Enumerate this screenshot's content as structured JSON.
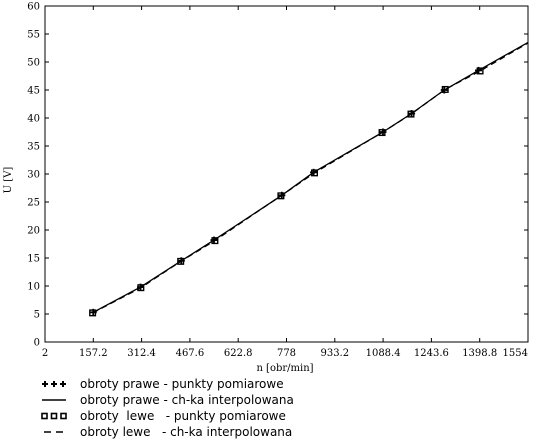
{
  "chart_data": {
    "type": "line",
    "xlabel": "n [obr/min]",
    "ylabel": "U [V]",
    "xlim": [
      2,
      1554
    ],
    "ylim": [
      0,
      60
    ],
    "x_ticks": [
      "2",
      "157.2",
      "312.4",
      "467.6",
      "622.8",
      "778",
      "933.2",
      "1088.4",
      "1243.6",
      "1398.8",
      "1554"
    ],
    "y_ticks": [
      "0",
      "5",
      "10",
      "15",
      "20",
      "25",
      "30",
      "35",
      "40",
      "45",
      "50",
      "55",
      "60"
    ],
    "grid": false,
    "legend_position": "bottom",
    "series": [
      {
        "name": "obroty prawe - punkty pomiarowe",
        "marker": "plus",
        "x": [
          157,
          309,
          440,
          545,
          763,
          865,
          1088,
          1180,
          1285,
          1395
        ],
        "y": [
          5.3,
          9.8,
          14.5,
          18.2,
          26.2,
          30.3,
          37.5,
          40.8,
          45.0,
          48.5
        ]
      },
      {
        "name": "obroty prawe - ch-ka interpolowana",
        "line_style": "solid",
        "x": [
          157,
          309,
          440,
          545,
          763,
          865,
          1088,
          1180,
          1285,
          1395,
          1554
        ],
        "y": [
          5.3,
          9.8,
          14.5,
          18.2,
          26.2,
          30.3,
          37.5,
          40.8,
          45.0,
          48.5,
          53.5
        ]
      },
      {
        "name": "obroty  lewe   - punkty pomiarowe",
        "marker": "square",
        "x": [
          155,
          310,
          438,
          548,
          760,
          868,
          1085,
          1178,
          1288,
          1400
        ],
        "y": [
          5.2,
          9.7,
          14.4,
          18.1,
          26.1,
          30.2,
          37.4,
          40.7,
          45.1,
          48.4
        ]
      },
      {
        "name": "obroty lewe   - ch-ka interpolowana",
        "line_style": "dashed",
        "x": [
          155,
          310,
          438,
          548,
          760,
          868,
          1085,
          1178,
          1288,
          1400,
          1554
        ],
        "y": [
          5.2,
          9.7,
          14.4,
          18.1,
          26.1,
          30.2,
          37.4,
          40.7,
          45.1,
          48.4,
          53.4
        ]
      }
    ]
  }
}
